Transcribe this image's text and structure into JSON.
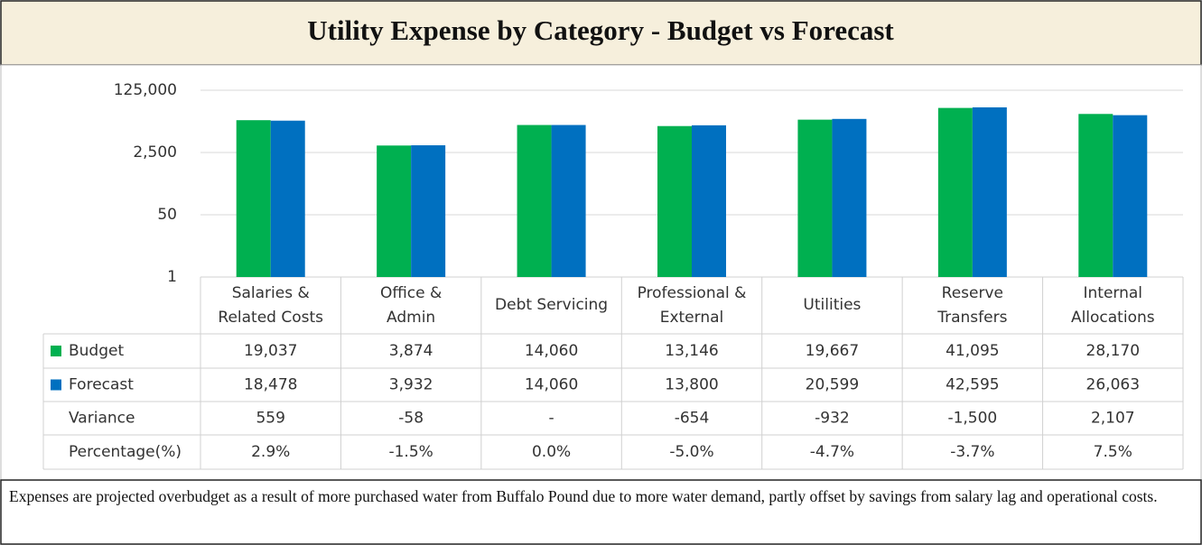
{
  "chart_data": {
    "type": "bar",
    "title": "Utility Expense by Category - Budget vs Forecast",
    "categories": [
      "Salaries & Related Costs",
      "Office & Admin",
      "Debt Servicing",
      "Professional & External",
      "Utilities",
      "Reserve Transfers",
      "Internal Allocations"
    ],
    "series": [
      {
        "name": "Budget",
        "color": "#00b050",
        "values": [
          19037,
          3874,
          14060,
          13146,
          19667,
          41095,
          28170
        ],
        "value_labels": [
          "19,037",
          "3,874",
          "14,060",
          "13,146",
          "19,667",
          "41,095",
          "28,170"
        ]
      },
      {
        "name": "Forecast",
        "color": "#0070c0",
        "values": [
          18478,
          3932,
          14060,
          13800,
          20599,
          42595,
          26063
        ],
        "value_labels": [
          "18,478",
          "3,932",
          "14,060",
          "13,800",
          "20,599",
          "42,595",
          "26,063"
        ]
      }
    ],
    "table_rows": [
      {
        "name": "Variance",
        "values": [
          559,
          -58,
          0,
          -654,
          -932,
          -1500,
          2107
        ],
        "value_labels": [
          "559",
          "-58",
          "-",
          "-654",
          "-932",
          "-1,500",
          "2,107"
        ]
      },
      {
        "name": "Percentage(%)",
        "values": [
          2.9,
          -1.5,
          0.0,
          -5.0,
          -4.7,
          -3.7,
          7.5
        ],
        "value_labels": [
          "2.9%",
          "-1.5%",
          "0.0%",
          "-5.0%",
          "-4.7%",
          "-3.7%",
          "7.5%"
        ]
      }
    ],
    "log_scale": true,
    "grid": true,
    "ylim": [
      1,
      125000
    ],
    "yticks": [
      1,
      50,
      {
        "value": 2500,
        "label": "2,500"
      },
      {
        "value": 125000,
        "label": "125,000"
      }
    ],
    "footnote": "Expenses are projected overbudget as a result of  more purchased water from Buffalo Pound due to more water demand, partly offset by savings from salary lag and operational costs."
  }
}
